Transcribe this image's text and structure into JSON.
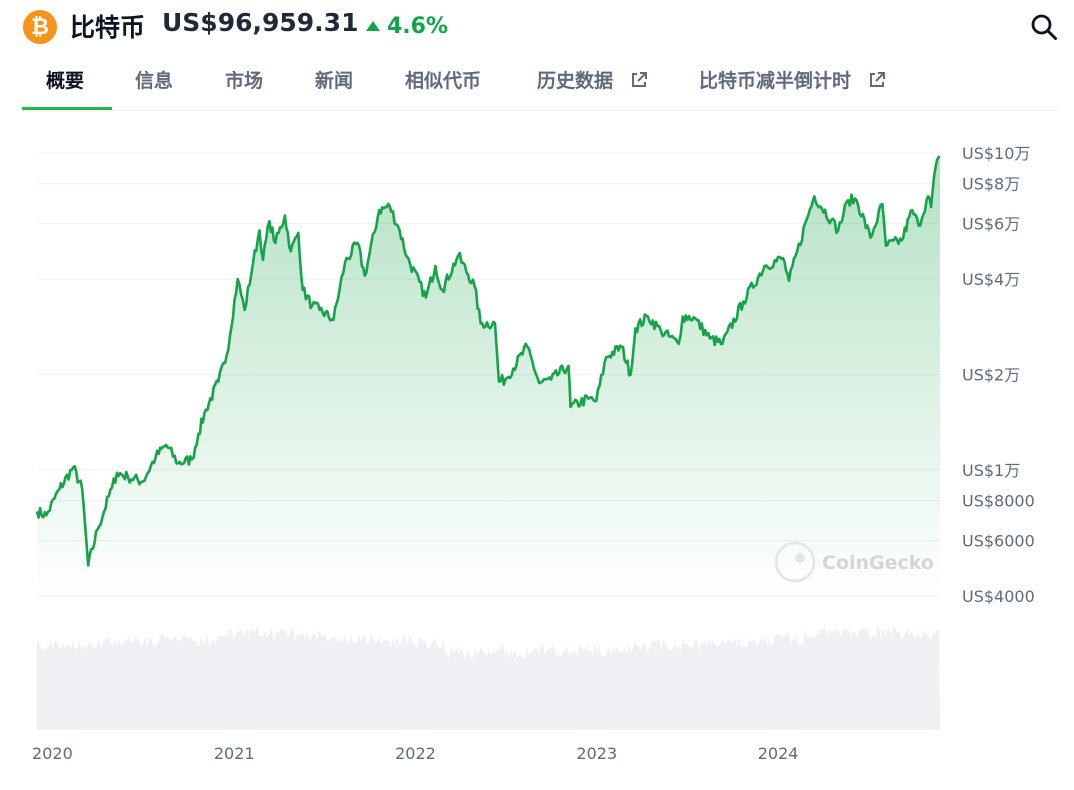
{
  "header": {
    "coin_name": "比特币",
    "price": "US$96,959.31",
    "change": "4.6%",
    "change_color": "#10a54a",
    "coin_icon": "bitcoin-logo-icon",
    "coin_color": "#f7931a",
    "search_icon": "search-icon"
  },
  "tabs": [
    {
      "label": "概要",
      "active": true,
      "external": false
    },
    {
      "label": "信息",
      "active": false,
      "external": false
    },
    {
      "label": "市场",
      "active": false,
      "external": false
    },
    {
      "label": "新闻",
      "active": false,
      "external": false
    },
    {
      "label": "相似代币",
      "active": false,
      "external": false
    },
    {
      "label": "历史数据",
      "active": false,
      "external": true
    },
    {
      "label": "比特币减半倒计时",
      "active": false,
      "external": true
    }
  ],
  "watermark": "CoinGecko",
  "chart_data": {
    "type": "area",
    "yscale": "log",
    "line_color": "#16a34a",
    "y_ticks": [
      {
        "value": 100000,
        "label": "US$10万"
      },
      {
        "value": 80000,
        "label": "US$8万"
      },
      {
        "value": 60000,
        "label": "US$6万"
      },
      {
        "value": 40000,
        "label": "US$4万"
      },
      {
        "value": 20000,
        "label": "US$2万"
      },
      {
        "value": 10000,
        "label": "US$1万"
      },
      {
        "value": 8000,
        "label": "US$8000"
      },
      {
        "value": 6000,
        "label": "US$6000"
      },
      {
        "value": 4000,
        "label": "US$4000"
      }
    ],
    "x_ticks": [
      {
        "value": "2020-01-01",
        "label": "2020"
      },
      {
        "value": "2021-01-01",
        "label": "2021"
      },
      {
        "value": "2022-01-01",
        "label": "2022"
      },
      {
        "value": "2023-01-01",
        "label": "2023"
      },
      {
        "value": "2024-01-01",
        "label": "2024"
      }
    ],
    "x_range": [
      "2019-12-01",
      "2024-11-22"
    ],
    "series": [
      {
        "points": [
          [
            "2019-12-01",
            7400
          ],
          [
            "2019-12-20",
            7200
          ],
          [
            "2020-01-15",
            8700
          ],
          [
            "2020-02-12",
            10200
          ],
          [
            "2020-03-01",
            8700
          ],
          [
            "2020-03-13",
            5000
          ],
          [
            "2020-04-01",
            6500
          ],
          [
            "2020-04-30",
            8800
          ],
          [
            "2020-05-10",
            9800
          ],
          [
            "2020-06-01",
            9500
          ],
          [
            "2020-07-01",
            9200
          ],
          [
            "2020-07-27",
            11000
          ],
          [
            "2020-08-17",
            12000
          ],
          [
            "2020-09-10",
            10500
          ],
          [
            "2020-10-08",
            10800
          ],
          [
            "2020-10-21",
            13000
          ],
          [
            "2020-11-05",
            15500
          ],
          [
            "2020-11-30",
            19000
          ],
          [
            "2020-12-17",
            23000
          ],
          [
            "2021-01-08",
            40000
          ],
          [
            "2021-01-22",
            32000
          ],
          [
            "2021-02-08",
            45000
          ],
          [
            "2021-02-21",
            57000
          ],
          [
            "2021-02-28",
            46000
          ],
          [
            "2021-03-13",
            61000
          ],
          [
            "2021-03-25",
            52000
          ],
          [
            "2021-04-13",
            63500
          ],
          [
            "2021-04-25",
            49000
          ],
          [
            "2021-05-10",
            56000
          ],
          [
            "2021-05-19",
            37000
          ],
          [
            "2021-06-07",
            33000
          ],
          [
            "2021-06-22",
            32000
          ],
          [
            "2021-07-20",
            29800
          ],
          [
            "2021-08-12",
            45000
          ],
          [
            "2021-09-06",
            52000
          ],
          [
            "2021-09-21",
            41000
          ],
          [
            "2021-10-20",
            66000
          ],
          [
            "2021-11-10",
            68000
          ],
          [
            "2021-11-30",
            57000
          ],
          [
            "2021-12-15",
            47000
          ],
          [
            "2022-01-22",
            35000
          ],
          [
            "2022-02-10",
            44000
          ],
          [
            "2022-02-24",
            37000
          ],
          [
            "2022-03-28",
            47500
          ],
          [
            "2022-04-30",
            38000
          ],
          [
            "2022-05-12",
            29000
          ],
          [
            "2022-06-10",
            29000
          ],
          [
            "2022-06-18",
            19000
          ],
          [
            "2022-07-01",
            19300
          ],
          [
            "2022-08-14",
            24500
          ],
          [
            "2022-09-07",
            18800
          ],
          [
            "2022-10-01",
            19300
          ],
          [
            "2022-11-05",
            21300
          ],
          [
            "2022-11-09",
            15800
          ],
          [
            "2022-12-15",
            16800
          ],
          [
            "2022-12-31",
            16500
          ],
          [
            "2023-01-20",
            22700
          ],
          [
            "2023-02-20",
            24500
          ],
          [
            "2023-03-10",
            20000
          ],
          [
            "2023-03-20",
            28000
          ],
          [
            "2023-04-14",
            30500
          ],
          [
            "2023-05-10",
            27500
          ],
          [
            "2023-06-15",
            25000
          ],
          [
            "2023-06-23",
            30500
          ],
          [
            "2023-07-15",
            30300
          ],
          [
            "2023-08-17",
            26000
          ],
          [
            "2023-09-11",
            25000
          ],
          [
            "2023-10-23",
            34000
          ],
          [
            "2023-12-05",
            44000
          ],
          [
            "2024-01-11",
            46600
          ],
          [
            "2024-01-23",
            39500
          ],
          [
            "2024-02-28",
            62000
          ],
          [
            "2024-03-14",
            73000
          ],
          [
            "2024-04-17",
            61500
          ],
          [
            "2024-05-01",
            57000
          ],
          [
            "2024-05-21",
            71000
          ],
          [
            "2024-06-07",
            71000
          ],
          [
            "2024-07-05",
            54000
          ],
          [
            "2024-07-29",
            69000
          ],
          [
            "2024-08-05",
            51000
          ],
          [
            "2024-09-06",
            53000
          ],
          [
            "2024-09-27",
            66000
          ],
          [
            "2024-10-10",
            59000
          ],
          [
            "2024-10-29",
            73000
          ],
          [
            "2024-11-04",
            67500
          ],
          [
            "2024-11-13",
            90000
          ],
          [
            "2024-11-22",
            96959
          ]
        ]
      }
    ]
  }
}
